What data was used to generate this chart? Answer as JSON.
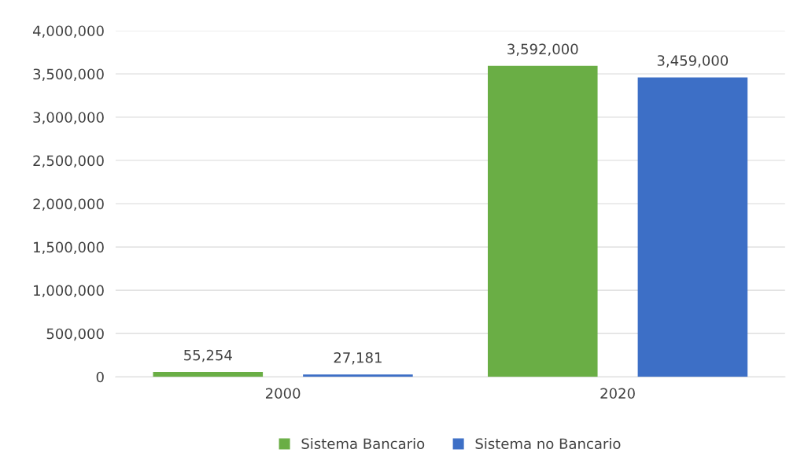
{
  "chart_data": {
    "type": "bar",
    "categories": [
      "2000",
      "2020"
    ],
    "series": [
      {
        "name": "Sistema Bancario",
        "color": "#6aae45",
        "values": [
          55254,
          3592000
        ],
        "value_labels": [
          "55,254",
          "3,592,000"
        ]
      },
      {
        "name": "Sistema no Bancario",
        "color": "#3d6fc6",
        "values": [
          27181,
          3459000
        ],
        "value_labels": [
          "27,181",
          "3,459,000"
        ]
      }
    ],
    "ylim": [
      0,
      4000000
    ],
    "yticks": [
      {
        "value": 0,
        "label": "0"
      },
      {
        "value": 500000,
        "label": "500,000"
      },
      {
        "value": 1000000,
        "label": "1,000,000"
      },
      {
        "value": 1500000,
        "label": "1,500,000"
      },
      {
        "value": 2000000,
        "label": "2,000,000"
      },
      {
        "value": 2500000,
        "label": "2,500,000"
      },
      {
        "value": 3000000,
        "label": "3,000,000"
      },
      {
        "value": 3500000,
        "label": "3,500,000"
      },
      {
        "value": 4000000,
        "label": "4,000,000"
      }
    ],
    "grid": "y",
    "legend": "bottom"
  }
}
